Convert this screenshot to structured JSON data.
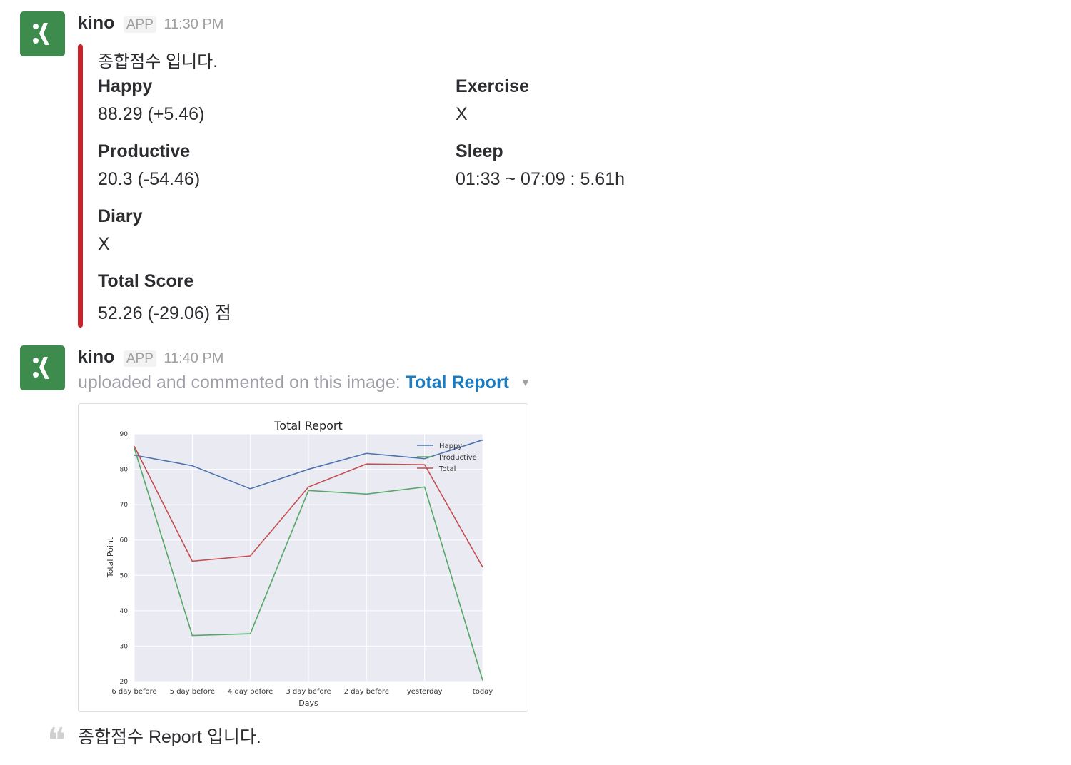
{
  "messages": [
    {
      "sender": "kino",
      "badge": "APP",
      "time": "11:30 PM",
      "attachment": {
        "bar_color": "#c6242b",
        "pretext": "종합점수 입니다.",
        "fields": [
          {
            "title": "Happy",
            "value": "88.29 (+5.46)"
          },
          {
            "title": "Exercise",
            "value": "X"
          },
          {
            "title": "Productive",
            "value": "20.3 (-54.46)"
          },
          {
            "title": "Sleep",
            "value": "01:33 ~ 07:09 : 5.61h"
          },
          {
            "title": "Diary",
            "value": "X"
          },
          {
            "title": "Total Score",
            "value": "52.26 (-29.06) 점"
          }
        ]
      }
    },
    {
      "sender": "kino",
      "badge": "APP",
      "time": "11:40 PM",
      "upload_text": "uploaded and commented on this image:",
      "file_link": "Total Report",
      "comment": "종합점수 Report 입니다."
    }
  ],
  "icons": {
    "avatar": "kino-logo-icon",
    "file_menu": "caret-down-icon",
    "comment": "quote-icon"
  },
  "colors": {
    "avatar_bg": "#3d8b4d",
    "link": "#1a7bbf",
    "attachment_bar": "#c6242b"
  },
  "chart_data": {
    "type": "line",
    "title": "Total Report",
    "xlabel": "Days",
    "ylabel": "Total Point",
    "categories": [
      "6 day before",
      "5 day before",
      "4 day before",
      "3 day before",
      "2 day before",
      "yesterday",
      "today"
    ],
    "ylim": [
      20,
      90
    ],
    "yticks": [
      20,
      30,
      40,
      50,
      60,
      70,
      80,
      90
    ],
    "grid": true,
    "legend_position": "top-right",
    "series": [
      {
        "name": "Happy",
        "color": "#4c72b0",
        "values": [
          84,
          81,
          74.5,
          80,
          84.5,
          83,
          88.3
        ]
      },
      {
        "name": "Productive",
        "color": "#55a868",
        "values": [
          86,
          33,
          33.5,
          74,
          73,
          75,
          20.3
        ]
      },
      {
        "name": "Total",
        "color": "#c44e52",
        "values": [
          86.5,
          54,
          55.5,
          75,
          81.5,
          81.3,
          52.3
        ]
      }
    ]
  }
}
